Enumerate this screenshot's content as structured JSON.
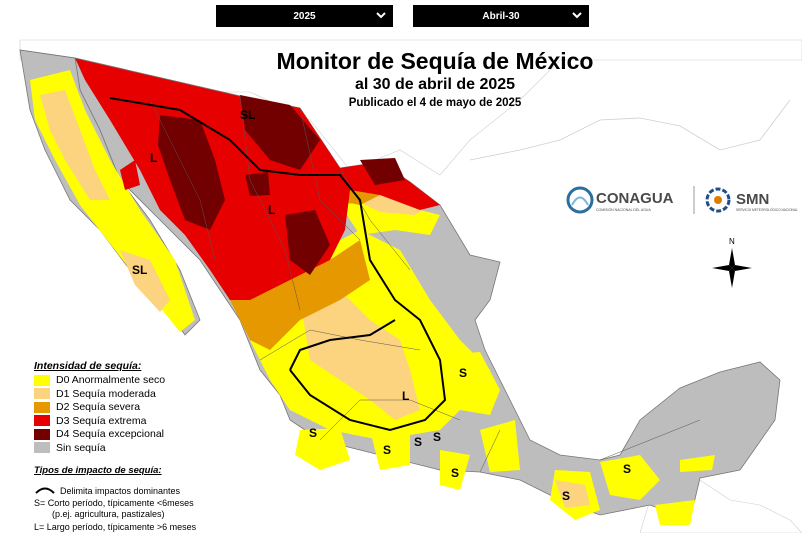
{
  "year_select": {
    "value": "2025"
  },
  "date_select": {
    "value": "Abril-30"
  },
  "title": "Monitor de Sequía de México",
  "subtitle": "al 30 de abril de 2025",
  "published": "Publicado el 4 de mayo de 2025",
  "logos": {
    "conagua": "CONAGUA",
    "conagua_sub": "COMISIÓN NACIONAL DEL AGUA",
    "smn": "SMN",
    "smn_sub": "SERVICIO METEOROLÓGICO NACIONAL"
  },
  "compass": {
    "north": "N"
  },
  "map_labels": {
    "sl": "SL",
    "l": "L",
    "s": "S"
  },
  "legend": {
    "intensity_title": "Intensidad de sequía:",
    "items": [
      {
        "label": "D0 Anormalmente seco",
        "color": "#ffff00"
      },
      {
        "label": "D1 Sequía moderada",
        "color": "#fcd37f"
      },
      {
        "label": "D2 Sequía severa",
        "color": "#e69800"
      },
      {
        "label": "D3 Sequía extrema",
        "color": "#e60000"
      },
      {
        "label": "D4 Sequía excepcional",
        "color": "#730000"
      },
      {
        "label": "Sin sequía",
        "color": "#bdbdbd"
      }
    ],
    "impact_title": "Tipos de impacto de sequía:",
    "impact_line": "Delimita impactos dominantes",
    "impact_s": "S= Corto período, típicamente <6meses",
    "impact_s_ex": "(p.ej. agricultura, pastizales)",
    "impact_l": "L= Largo período, típicamente >6 meses"
  }
}
